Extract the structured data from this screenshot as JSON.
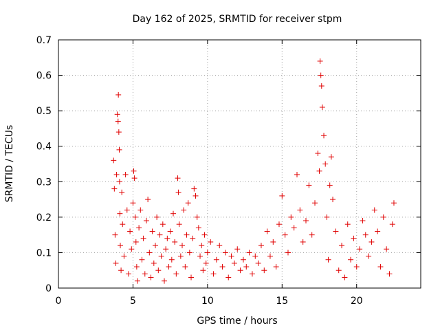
{
  "chart_data": {
    "type": "scatter",
    "title": "Day 162 of 2025, SRMTID for receiver stpm",
    "xlabel": "GPS time / hours",
    "ylabel": "SRMTID / TECUs",
    "xlim": [
      0,
      24.3
    ],
    "ylim": [
      0,
      0.7
    ],
    "xticks": [
      0,
      5,
      10,
      15,
      20
    ],
    "xtick_labels": [
      "0",
      "5",
      "10",
      "15",
      "20"
    ],
    "yticks": [
      0,
      0.1,
      0.2,
      0.3,
      0.4,
      0.5,
      0.6,
      0.7
    ],
    "ytick_labels": [
      "0",
      "0.1",
      "0.2",
      "0.3",
      "0.4",
      "0.5",
      "0.6",
      "0.7"
    ],
    "grid": true,
    "marker": "+",
    "color": "#e00000",
    "series": [
      {
        "name": "SRMTID",
        "x": [
          3.7,
          3.75,
          3.8,
          3.85,
          3.9,
          3.95,
          4.0,
          4.02,
          4.05,
          4.08,
          4.1,
          4.12,
          4.15,
          4.2,
          4.25,
          4.3,
          4.4,
          4.5,
          4.6,
          4.7,
          4.8,
          4.9,
          5.0,
          5.05,
          5.1,
          5.15,
          5.2,
          5.25,
          5.3,
          5.4,
          5.5,
          5.6,
          5.7,
          5.8,
          5.9,
          6.0,
          6.1,
          6.2,
          6.3,
          6.4,
          6.5,
          6.6,
          6.7,
          6.8,
          6.9,
          7.0,
          7.1,
          7.2,
          7.3,
          7.4,
          7.5,
          7.6,
          7.7,
          7.8,
          7.9,
          8.0,
          8.05,
          8.1,
          8.2,
          8.3,
          8.4,
          8.5,
          8.6,
          8.7,
          8.8,
          8.9,
          9.0,
          9.1,
          9.2,
          9.3,
          9.4,
          9.5,
          9.6,
          9.7,
          9.8,
          9.9,
          10.0,
          10.2,
          10.4,
          10.6,
          10.8,
          11.0,
          11.2,
          11.4,
          11.6,
          11.8,
          12.0,
          12.2,
          12.4,
          12.6,
          12.8,
          13.0,
          13.2,
          13.4,
          13.6,
          13.8,
          14.0,
          14.2,
          14.4,
          14.6,
          14.8,
          15.0,
          15.2,
          15.4,
          15.6,
          15.8,
          16.0,
          16.2,
          16.4,
          16.6,
          16.8,
          17.0,
          17.2,
          17.4,
          17.5,
          17.55,
          17.6,
          17.65,
          17.7,
          17.8,
          17.9,
          18.0,
          18.1,
          18.2,
          18.3,
          18.4,
          18.6,
          18.8,
          19.0,
          19.2,
          19.4,
          19.6,
          19.8,
          20.0,
          20.2,
          20.4,
          20.6,
          20.8,
          21.0,
          21.2,
          21.4,
          21.6,
          21.8,
          22.0,
          22.2,
          22.4,
          22.5
        ],
        "y": [
          0.36,
          0.28,
          0.15,
          0.07,
          0.32,
          0.49,
          0.47,
          0.545,
          0.44,
          0.39,
          0.3,
          0.21,
          0.12,
          0.05,
          0.27,
          0.18,
          0.09,
          0.32,
          0.22,
          0.04,
          0.16,
          0.11,
          0.24,
          0.33,
          0.31,
          0.2,
          0.13,
          0.06,
          0.02,
          0.17,
          0.22,
          0.08,
          0.14,
          0.04,
          0.19,
          0.25,
          0.1,
          0.03,
          0.16,
          0.07,
          0.12,
          0.2,
          0.05,
          0.15,
          0.09,
          0.18,
          0.02,
          0.11,
          0.14,
          0.06,
          0.16,
          0.08,
          0.21,
          0.13,
          0.04,
          0.31,
          0.27,
          0.18,
          0.09,
          0.12,
          0.22,
          0.06,
          0.15,
          0.24,
          0.1,
          0.03,
          0.14,
          0.28,
          0.26,
          0.2,
          0.17,
          0.09,
          0.12,
          0.05,
          0.15,
          0.07,
          0.1,
          0.13,
          0.04,
          0.08,
          0.12,
          0.06,
          0.1,
          0.03,
          0.09,
          0.07,
          0.11,
          0.05,
          0.08,
          0.06,
          0.1,
          0.04,
          0.09,
          0.07,
          0.12,
          0.05,
          0.16,
          0.09,
          0.13,
          0.06,
          0.18,
          0.26,
          0.15,
          0.1,
          0.2,
          0.17,
          0.32,
          0.22,
          0.13,
          0.19,
          0.29,
          0.15,
          0.24,
          0.38,
          0.33,
          0.64,
          0.6,
          0.57,
          0.51,
          0.43,
          0.35,
          0.2,
          0.08,
          0.29,
          0.37,
          0.25,
          0.16,
          0.05,
          0.12,
          0.03,
          0.18,
          0.08,
          0.14,
          0.06,
          0.11,
          0.19,
          0.15,
          0.09,
          0.13,
          0.22,
          0.16,
          0.06,
          0.2,
          0.11,
          0.04,
          0.18,
          0.24
        ]
      }
    ]
  }
}
